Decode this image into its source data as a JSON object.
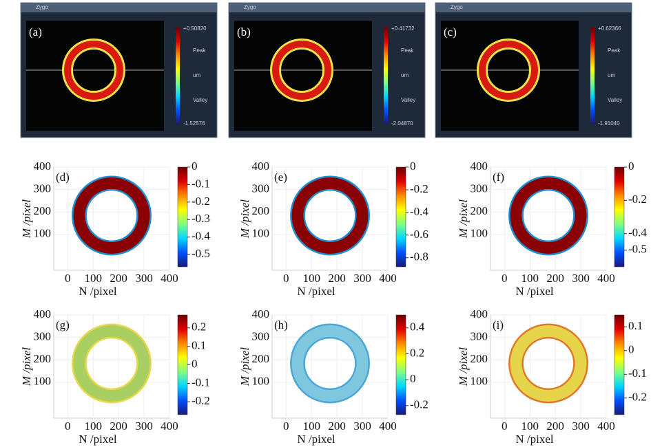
{
  "colormap": [
    "#6e0000",
    "#e00000",
    "#ff8a00",
    "#ffff00",
    "#7fff7f",
    "#00d8ff",
    "#0050ff",
    "#1a1a7a"
  ],
  "zygo_panels": [
    {
      "label": "(a)",
      "window_title": "Zygo",
      "max": "+0.50820",
      "min": "-1.52576",
      "peak": "Peak",
      "unit": "um",
      "valley": "Valley"
    },
    {
      "label": "(b)",
      "window_title": "Zygo",
      "max": "+0.41732",
      "min": "-2.04870",
      "peak": "Peak",
      "unit": "um",
      "valley": "Valley"
    },
    {
      "label": "(c)",
      "window_title": "Zygo",
      "max": "+0.62366",
      "min": "-1.91040",
      "peak": "Peak",
      "unit": "um",
      "valley": "Valley"
    }
  ],
  "chart_data": [
    {
      "type": "heatmap",
      "label": "(d)",
      "xlabel": "N /pixel",
      "ylabel": "M /pixel",
      "xlim": [
        -55,
        400
      ],
      "ylim": [
        -60,
        400
      ],
      "xticks": [
        0,
        100,
        200,
        300,
        400
      ],
      "yticks": [
        100,
        200,
        300,
        400
      ],
      "grid": true,
      "ring_color": "#8a0000",
      "edge_color": "#1f8fd0",
      "clim": [
        -0.57,
        0
      ],
      "cticks": [
        0,
        -0.1,
        -0.2,
        -0.3,
        -0.4,
        -0.5
      ]
    },
    {
      "type": "heatmap",
      "label": "(e)",
      "xlabel": "N /pixel",
      "ylabel": "M /pixel",
      "xlim": [
        -55,
        400
      ],
      "ylim": [
        -60,
        400
      ],
      "xticks": [
        0,
        100,
        200,
        300,
        400
      ],
      "yticks": [
        100,
        200,
        300,
        400
      ],
      "grid": true,
      "ring_color": "#8a0000",
      "edge_color": "#1f8fd0",
      "clim": [
        -0.88,
        0
      ],
      "cticks": [
        0,
        -0.2,
        -0.4,
        -0.6,
        -0.8
      ]
    },
    {
      "type": "heatmap",
      "label": "(f)",
      "xlabel": "N /pixel",
      "ylabel": "M /pixel",
      "xlim": [
        -55,
        400
      ],
      "ylim": [
        -60,
        400
      ],
      "xticks": [
        0,
        100,
        200,
        300,
        400
      ],
      "yticks": [
        100,
        200,
        300,
        400
      ],
      "grid": true,
      "ring_color": "#8a0000",
      "edge_color": "#1f8fd0",
      "clim": [
        -0.6,
        0
      ],
      "cticks": [
        0,
        -0.2,
        -0.4,
        -0.5
      ]
    },
    {
      "type": "heatmap",
      "label": "(g)",
      "xlabel": "N /pixel",
      "ylabel": "M /pixel",
      "xlim": [
        -55,
        400
      ],
      "ylim": [
        -60,
        400
      ],
      "xticks": [
        0,
        100,
        200,
        300,
        400
      ],
      "yticks": [
        100,
        200,
        300,
        400
      ],
      "grid": true,
      "ring_color": "#a9cf63",
      "edge_color": "#e8d84a",
      "clim": [
        -0.27,
        0.27
      ],
      "cticks": [
        0.2,
        0.1,
        0,
        -0.1,
        -0.2
      ]
    },
    {
      "type": "heatmap",
      "label": "(h)",
      "xlabel": "N /pixel",
      "ylabel": "M /pixel",
      "xlim": [
        -55,
        400
      ],
      "ylim": [
        -60,
        400
      ],
      "xticks": [
        0,
        100,
        200,
        300,
        400
      ],
      "yticks": [
        100,
        200,
        300,
        400
      ],
      "grid": true,
      "ring_color": "#7fc7df",
      "edge_color": "#4aa8d8",
      "clim": [
        -0.27,
        0.5
      ],
      "cticks": [
        0.4,
        0.2,
        0,
        -0.2
      ]
    },
    {
      "type": "heatmap",
      "label": "(i)",
      "xlabel": "N /pixel",
      "ylabel": "M /pixel",
      "xlim": [
        -55,
        400
      ],
      "ylim": [
        -60,
        400
      ],
      "xticks": [
        0,
        100,
        200,
        300,
        400
      ],
      "yticks": [
        100,
        200,
        300,
        400
      ],
      "grid": true,
      "ring_color": "#e6d44a",
      "edge_color": "#e07a2a",
      "clim": [
        -0.27,
        0.15
      ],
      "cticks": [
        0.1,
        0,
        -0.1,
        -0.2
      ]
    }
  ]
}
